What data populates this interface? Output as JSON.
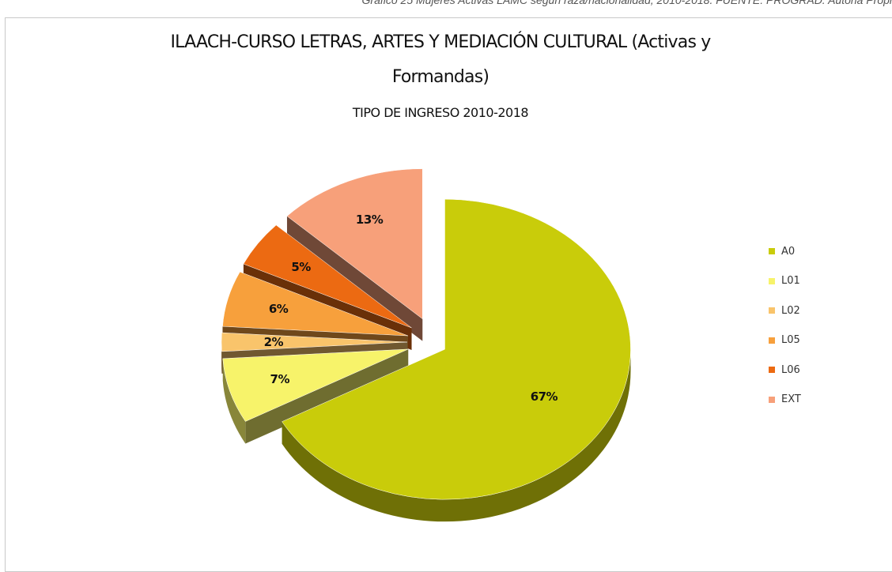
{
  "caption": "Gráfico 25 Mujeres Activas LAMC según raza/nacionalidad, 2010-2018. FUENTE: PROGRAD. Autoria Propi",
  "chart_data": {
    "type": "pie",
    "title": "ILAACH-CURSO LETRAS, ARTES Y MEDIACIÓN CULTURAL (Activas y",
    "title_line2": "Formandas)",
    "subtitle": "TIPO DE INGRESO 2010-2018",
    "labels": [
      "A0",
      "L01",
      "L02",
      "L05",
      "L06",
      "EXT"
    ],
    "values": [
      67,
      7,
      2,
      6,
      5,
      13
    ],
    "data_labels": [
      "67%",
      "7%",
      "2%",
      "6%",
      "5%",
      "13%"
    ],
    "colors": [
      "#c9cc0a",
      "#f7f36a",
      "#f9c46b",
      "#f7a03c",
      "#ec6a12",
      "#f7a07a"
    ],
    "exploded": true,
    "style": "3d",
    "legend_position": "right"
  }
}
